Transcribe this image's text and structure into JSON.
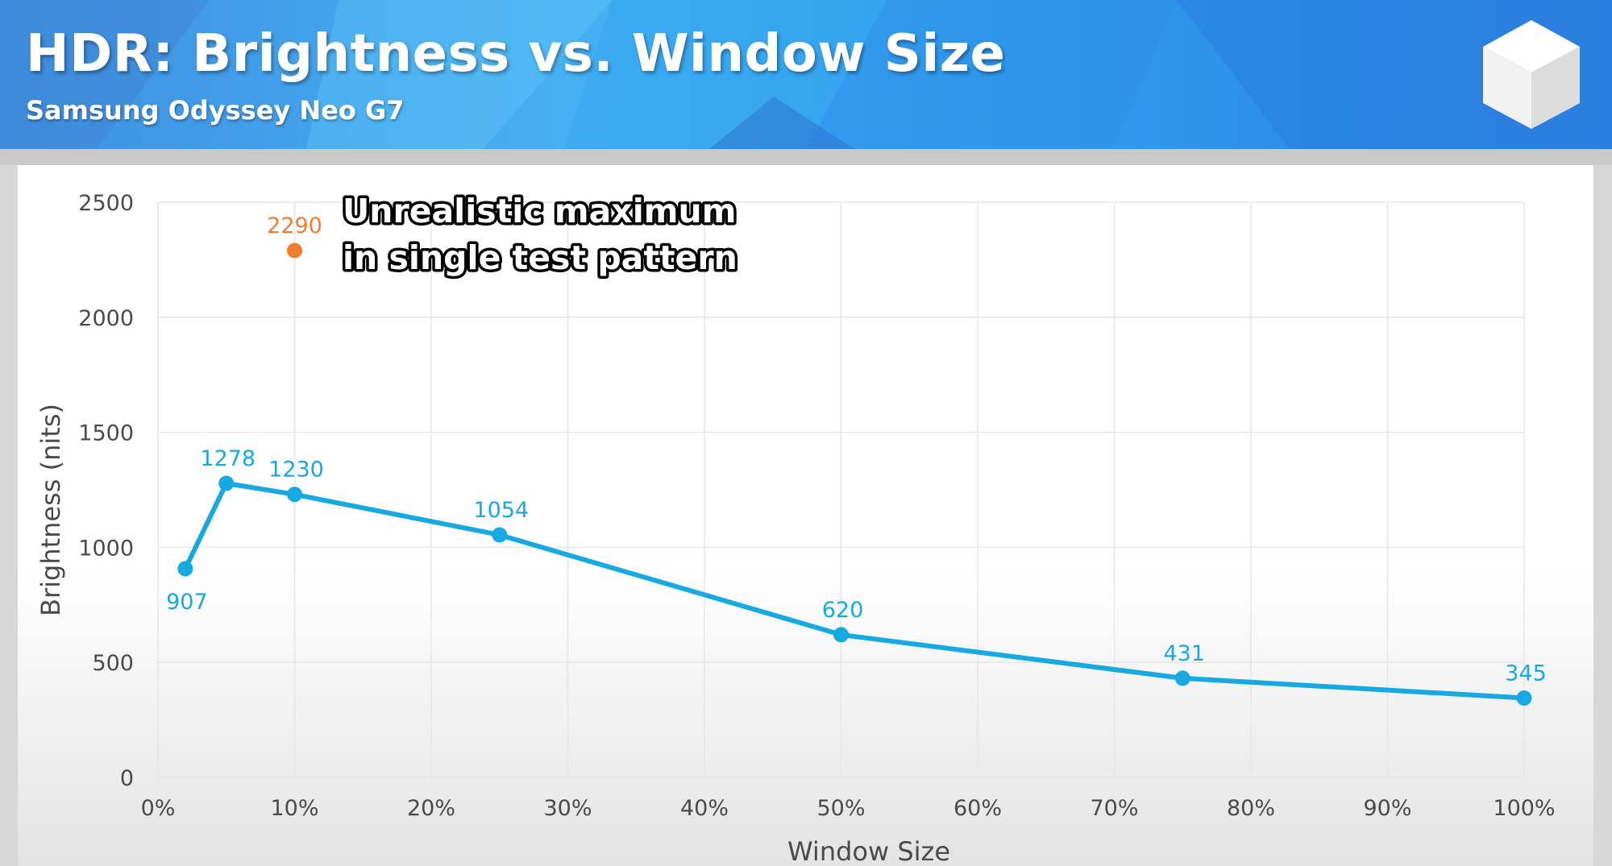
{
  "header": {
    "title": "HDR: Brightness vs. Window Size",
    "subtitle": "Samsung Odyssey Neo G7",
    "logo_icon": "white-cube-icon"
  },
  "colors": {
    "series": "#17a9e1",
    "outlier": "#ef7f2e",
    "banner": "#3aa2ee",
    "grid": "#e6e6e6"
  },
  "chart_data": {
    "type": "line",
    "xlabel": "Window Size",
    "ylabel": "Brightness (nits)",
    "xlim": [
      0,
      100
    ],
    "ylim": [
      0,
      2500
    ],
    "x_ticks": [
      "0%",
      "10%",
      "20%",
      "30%",
      "40%",
      "50%",
      "60%",
      "70%",
      "80%",
      "90%",
      "100%"
    ],
    "y_ticks": [
      "0",
      "500",
      "1000",
      "1500",
      "2000",
      "2500"
    ],
    "x_tick_values": [
      0,
      10,
      20,
      30,
      40,
      50,
      60,
      70,
      80,
      90,
      100
    ],
    "y_tick_values": [
      0,
      500,
      1000,
      1500,
      2000,
      2500
    ],
    "grid": true,
    "series": [
      {
        "x": [
          2,
          5,
          10,
          25,
          50,
          75,
          100
        ],
        "y": [
          907,
          1278,
          1230,
          1054,
          620,
          431,
          345
        ],
        "labels": [
          "907",
          "1278",
          "1230",
          "1054",
          "620",
          "431",
          "345"
        ]
      }
    ],
    "outlier": {
      "x": 10,
      "y": 2290,
      "label": "2290"
    },
    "annotation": [
      "Unrealistic maximum",
      "in single test pattern"
    ]
  }
}
